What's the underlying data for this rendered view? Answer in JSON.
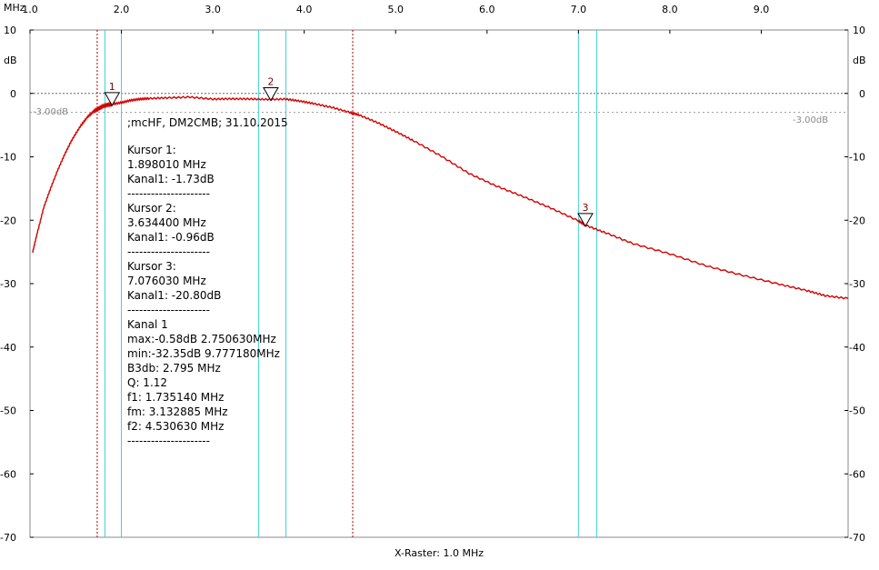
{
  "chart_data": {
    "type": "line",
    "x_unit": "MHz",
    "y_unit": "dB",
    "xlim": [
      1.0,
      9.95
    ],
    "ylim": [
      -70,
      10
    ],
    "x_ticks": [
      "1.0",
      "2.0",
      "3.0",
      "4.0",
      "5.0",
      "6.0",
      "7.0",
      "8.0",
      "9.0"
    ],
    "y_ticks": [
      "10",
      "0",
      "-10",
      "-20",
      "-30",
      "-40",
      "-50",
      "-60",
      "-70"
    ],
    "xlabel": "X-Raster: 1.0 MHz",
    "ref_label": "-3.00dB",
    "ref_level": -3.0,
    "zero_level": 0,
    "grid": false,
    "colors": {
      "trace": "#d40000",
      "cursor": "#3fd0d8",
      "marker": "#b00000",
      "ref": "#9a9a9a"
    },
    "series": [
      {
        "x": [
          1.03,
          1.08,
          1.15,
          1.22,
          1.3,
          1.38,
          1.46,
          1.55,
          1.63,
          1.7,
          1.75,
          1.8,
          1.85,
          1.9,
          2.0,
          2.1,
          2.2,
          2.3,
          2.5,
          2.75,
          3.0,
          3.2,
          3.4,
          3.6,
          3.8,
          3.95,
          4.1,
          4.3,
          4.5,
          4.6,
          4.8,
          5.0,
          5.2,
          5.5,
          5.8,
          6.1,
          6.4,
          6.7,
          7.0,
          7.08,
          7.3,
          7.6,
          8.0,
          8.4,
          8.8,
          9.2,
          9.5,
          9.7,
          9.95
        ],
        "y": [
          -25.0,
          -22.0,
          -18.0,
          -15.2,
          -12.2,
          -9.6,
          -7.3,
          -5.2,
          -3.7,
          -2.8,
          -2.4,
          -2.0,
          -1.8,
          -1.7,
          -1.45,
          -1.1,
          -0.9,
          -0.8,
          -0.7,
          -0.58,
          -0.9,
          -0.85,
          -0.88,
          -0.95,
          -0.9,
          -1.2,
          -1.6,
          -2.2,
          -3.0,
          -3.4,
          -4.6,
          -6.0,
          -7.5,
          -9.9,
          -12.6,
          -14.6,
          -16.3,
          -18.1,
          -20.1,
          -20.8,
          -22.0,
          -23.7,
          -25.3,
          -27.2,
          -28.7,
          -30.1,
          -31.1,
          -31.9,
          -32.35
        ]
      }
    ],
    "markers": [
      {
        "label": "1",
        "x": 1.89801,
        "y": -1.73
      },
      {
        "label": "2",
        "x": 3.6344,
        "y": -0.96
      },
      {
        "label": "3",
        "x": 7.07603,
        "y": -20.8
      }
    ],
    "red_dotted_x": [
      1.73514,
      4.53063
    ],
    "cyan_lines_x": [
      1.82,
      2.0,
      3.5,
      3.8,
      7.0,
      7.2
    ],
    "annotation_lines": [
      ";mcHF, DM2CMB; 31.10.2015",
      "",
      "Kursor 1:",
      "1.898010 MHz",
      "Kanal1: -1.73dB",
      "---------------------",
      "Kursor 2:",
      "3.634400 MHz",
      "Kanal1: -0.96dB",
      "---------------------",
      "Kursor 3:",
      "7.076030 MHz",
      "Kanal1: -20.80dB",
      "---------------------",
      "Kanal 1",
      "max:-0.58dB 2.750630MHz",
      "min:-32.35dB 9.777180MHz",
      "B3db: 2.795 MHz",
      "Q: 1.12",
      "f1: 1.735140 MHz",
      "fm: 3.132885 MHz",
      "f2: 4.530630 MHz",
      "---------------------"
    ]
  }
}
